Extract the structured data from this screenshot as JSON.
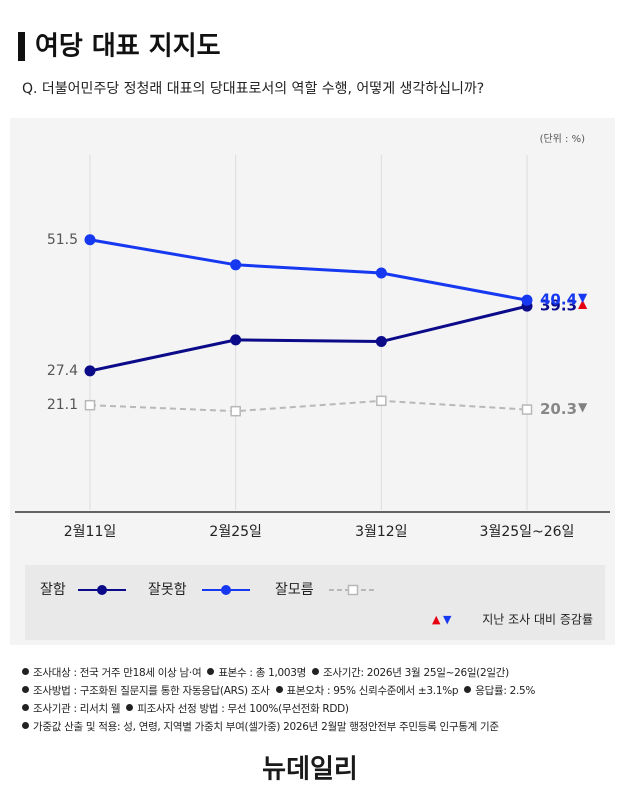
{
  "header": {
    "title": "여당 대표 지지도",
    "question": "Q. 더불어민주당 정청래 대표의 당대표로서의 역할 수행, 어떻게 생각하십니까?"
  },
  "chart_data": {
    "type": "line",
    "unit": "(단위 : %)",
    "categories": [
      "2월11일",
      "2월25일",
      "3월12일",
      "3월25일~26일"
    ],
    "series": [
      {
        "name": "잘함",
        "color": "#0b0b8a",
        "marker": "circle",
        "dashed": false,
        "values": [
          27.4,
          33.1,
          32.8,
          39.3
        ],
        "change": "▲",
        "change_color": "#e60012"
      },
      {
        "name": "잘못함",
        "color": "#1638f0",
        "marker": "circle",
        "dashed": false,
        "values": [
          51.5,
          46.9,
          45.4,
          40.4
        ],
        "change": "▼",
        "change_color": "#1638f0"
      },
      {
        "name": "잘모름",
        "color": "#b8b8b8",
        "marker": "square",
        "dashed": true,
        "values": [
          21.1,
          20.0,
          21.9,
          20.3
        ],
        "change": "▼",
        "change_color": "#808080"
      }
    ],
    "ylim": [
      0,
      68
    ],
    "grid": "vertical",
    "change_note": {
      "up": "▲",
      "up_color": "#e60012",
      "down": "▼",
      "down_color": "#1638f0",
      "text": "지난 조사 대비 증감률"
    }
  },
  "notes": [
    [
      "조사대상 : 전국 거주 만18세 이상 남·여",
      "표본수 : 총 1,003명",
      "조사기간: 2026년 3월 25일~26일(2일간)"
    ],
    [
      "조사방법 : 구조화된 질문지를 통한 자동응답(ARS) 조사",
      "표본오차 : 95% 신뢰수준에서 ±3.1%p",
      "응답률: 2.5%"
    ],
    [
      "조사기관 : 리서치 웰",
      "피조사자 선정 방법 : 무선 100%(무선전화 RDD)"
    ],
    [
      "가중값 산출 및 적용: 성, 연령, 지역별 가중치 부여(셀가중) 2026년 2월말 행정안전부 주민등록 인구통계 기준"
    ]
  ],
  "footer": {
    "logo": "뉴데일리"
  }
}
